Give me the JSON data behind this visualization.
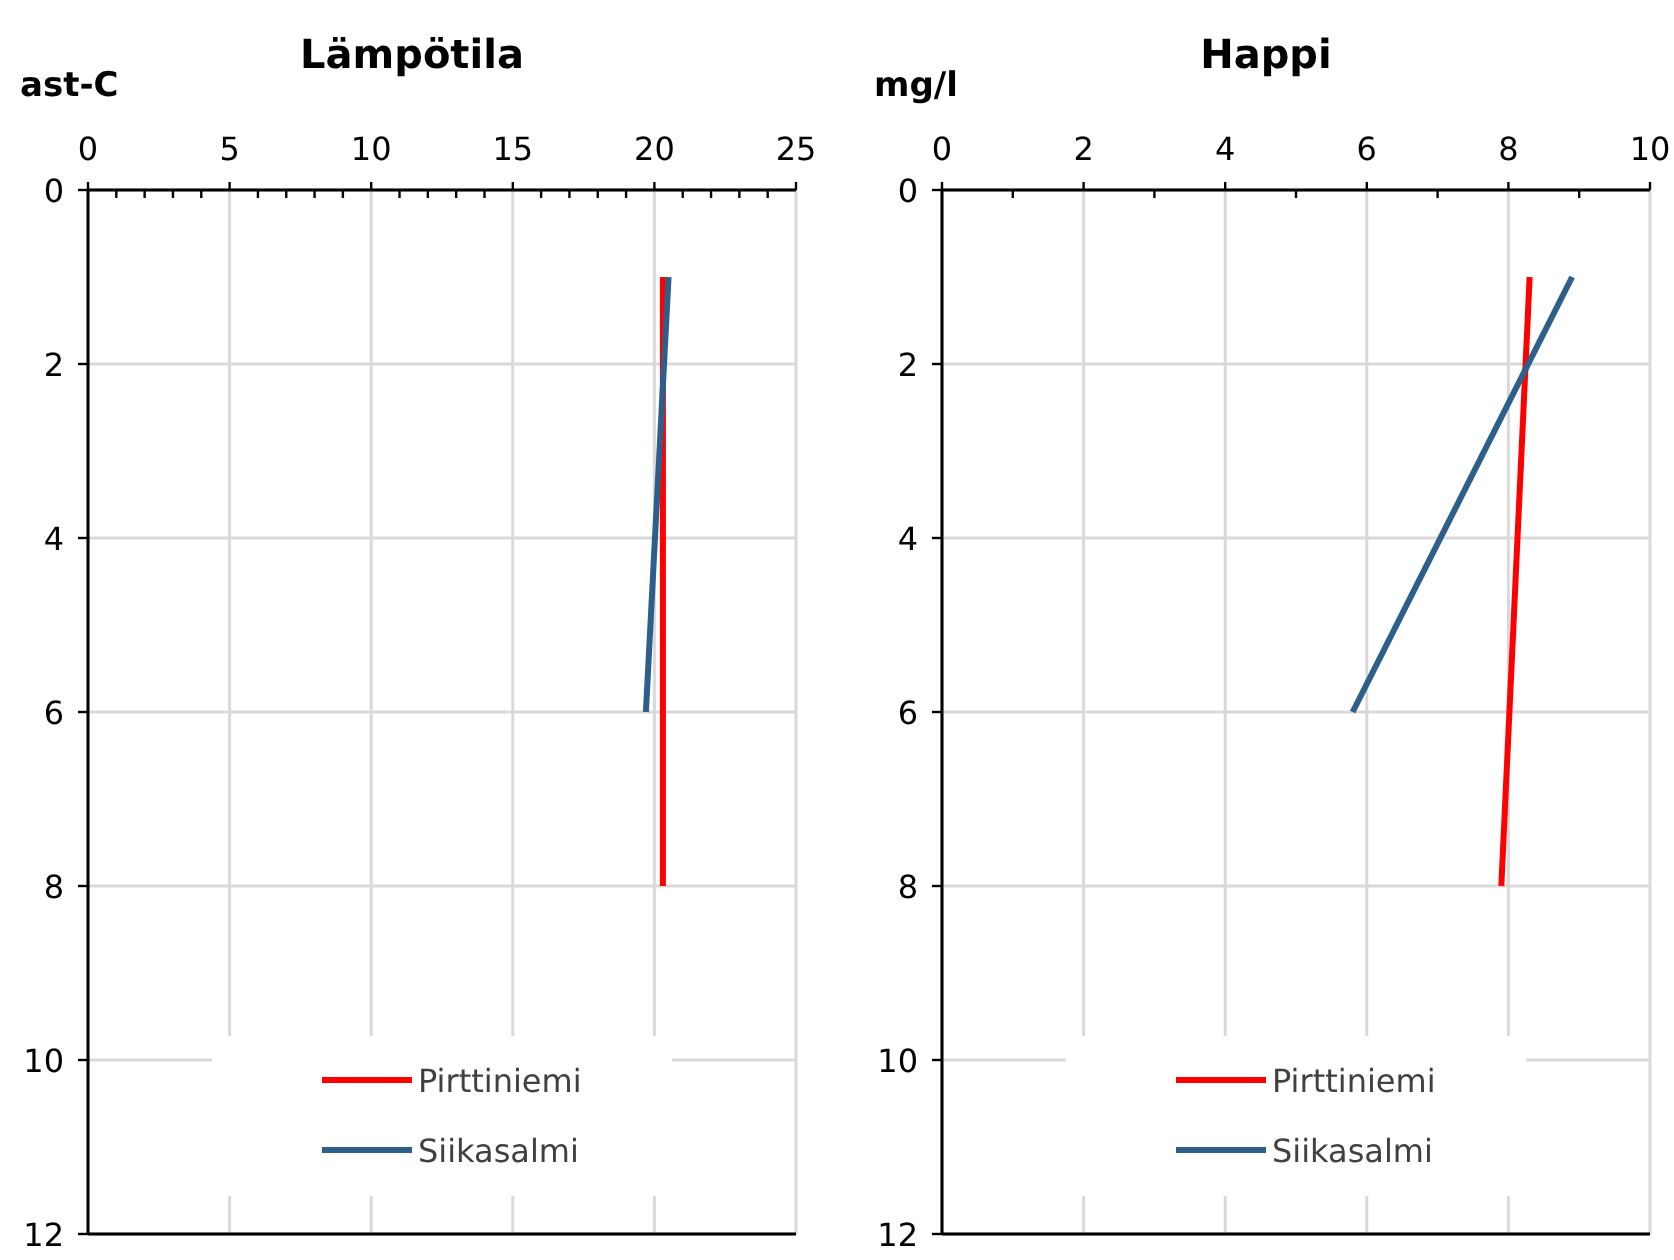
{
  "chart_data": [
    {
      "type": "line",
      "title": "Lämpötila",
      "xlabel": "ast-C",
      "xlim": [
        0,
        25
      ],
      "xticks": [
        0,
        {
          "value": 1,
          "label": null
        },
        {
          "value": 2,
          "label": null
        },
        {
          "value": 3,
          "label": null
        },
        {
          "value": 4,
          "label": null
        },
        5,
        {
          "value": 6,
          "label": null
        },
        {
          "value": 7,
          "label": null
        },
        {
          "value": 8,
          "label": null
        },
        {
          "value": 9,
          "label": null
        },
        10,
        {
          "value": 11,
          "label": null
        },
        {
          "value": 12,
          "label": null
        },
        {
          "value": 13,
          "label": null
        },
        {
          "value": 14,
          "label": null
        },
        15,
        {
          "value": 16,
          "label": null
        },
        {
          "value": 17,
          "label": null
        },
        {
          "value": 18,
          "label": null
        },
        {
          "value": 19,
          "label": null
        },
        20,
        {
          "value": 21,
          "label": null
        },
        {
          "value": 22,
          "label": null
        },
        {
          "value": 23,
          "label": null
        },
        {
          "value": 24,
          "label": null
        },
        25
      ],
      "ylim": [
        12,
        0
      ],
      "yticks": [
        0,
        2,
        4,
        6,
        8,
        10,
        12
      ],
      "grid": true,
      "legend": "bottom",
      "marker": "none",
      "series": [
        {
          "name": "Pirttiniemi",
          "color": "#ff0000",
          "x": [
            20.3,
            20.3
          ],
          "values": [
            1,
            8
          ]
        },
        {
          "name": "Siikasalmi",
          "color": "#2e5f8a",
          "x": [
            20.5,
            19.7
          ],
          "values": [
            1,
            6
          ]
        }
      ]
    },
    {
      "type": "line",
      "title": "Happi",
      "xlabel": "mg/l",
      "xlim": [
        0,
        10
      ],
      "xticks": [
        0,
        {
          "value": 1,
          "label": null
        },
        2,
        {
          "value": 3,
          "label": null
        },
        4,
        {
          "value": 5,
          "label": null
        },
        6,
        {
          "value": 7,
          "label": null
        },
        8,
        {
          "value": 9,
          "label": null
        },
        10
      ],
      "ylim": [
        12,
        0
      ],
      "yticks": [
        0,
        2,
        4,
        6,
        8,
        10,
        12
      ],
      "grid": true,
      "legend": "bottom",
      "marker": "none",
      "series": [
        {
          "name": "Pirttiniemi",
          "color": "#ff0000",
          "x": [
            8.3,
            7.9
          ],
          "values": [
            1,
            8
          ]
        },
        {
          "name": "Siikasalmi",
          "color": "#2e5f8a",
          "x": [
            8.9,
            5.8
          ],
          "values": [
            1,
            6
          ]
        }
      ]
    }
  ]
}
